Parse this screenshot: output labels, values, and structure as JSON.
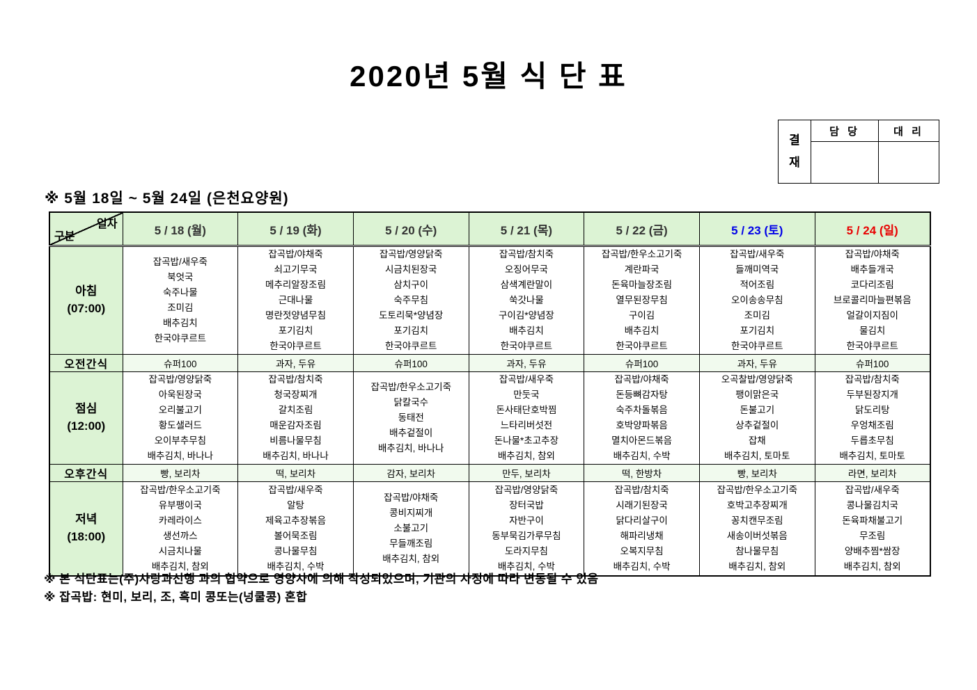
{
  "title": "2020년  5월  식  단  표",
  "approval": {
    "stamp_label": "결재",
    "col1": "담 당",
    "col2": "대 리"
  },
  "subtitle": "※  5월  18일  ~  5월  24일  (은천요양원)",
  "table": {
    "corner_top": "일자",
    "corner_bottom": "구분",
    "days": [
      {
        "label": "5 / 18 (월)",
        "color": "#333333"
      },
      {
        "label": "5 / 19 (화)",
        "color": "#333333"
      },
      {
        "label": "5 / 20 (수)",
        "color": "#333333"
      },
      {
        "label": "5 / 21 (목)",
        "color": "#333333"
      },
      {
        "label": "5 / 22 (금)",
        "color": "#333333"
      },
      {
        "label": "5 / 23 (토)",
        "color": "#0000e8"
      },
      {
        "label": "5 / 24 (일)",
        "color": "#e80000"
      }
    ],
    "rows": [
      {
        "kind": "meal",
        "meal": "아침",
        "time": "(07:00)",
        "menus": [
          [
            "잡곡밥/새우죽",
            "북엇국",
            "숙주나물",
            "조미김",
            "배추김치",
            "한국야쿠르트"
          ],
          [
            "잡곡밥/야채죽",
            "쇠고기무국",
            "메추리알장조림",
            "근대나물",
            "명란젓양념무침",
            "포기김치",
            "한국야쿠르트"
          ],
          [
            "잡곡밥/영양닭죽",
            "시금치된장국",
            "삼치구이",
            "숙주무침",
            "도토리묵*양념장",
            "포기김치",
            "한국야쿠르트"
          ],
          [
            "잡곡밥/참치죽",
            "오징어무국",
            "삼색계란말이",
            "쑥갓나물",
            "구이김*양념장",
            "배추김치",
            "한국야쿠르트"
          ],
          [
            "잡곡밥/한우소고기죽",
            "계란파국",
            "돈육마늘장조림",
            "열무된장무침",
            "구이김",
            "배추김치",
            "한국야쿠르트"
          ],
          [
            "잡곡밥/새우죽",
            "들깨미역국",
            "적어조림",
            "오이송송무침",
            "조미김",
            "포기김치",
            "한국야쿠르트"
          ],
          [
            "잡곡밥/야채죽",
            "배추들개국",
            "코다리조림",
            "브로콜리마늘편볶음",
            "얼갈이지짐이",
            "물김치",
            "한국야쿠르트"
          ]
        ]
      },
      {
        "kind": "snack",
        "meal": "오전간식",
        "items": [
          "슈퍼100",
          "과자, 두유",
          "슈퍼100",
          "과자, 두유",
          "슈퍼100",
          "과자, 두유",
          "슈퍼100"
        ]
      },
      {
        "kind": "meal",
        "meal": "점심",
        "time": "(12:00)",
        "menus": [
          [
            "잡곡밥/영양닭죽",
            "아욱된장국",
            "오리불고기",
            "황도샐러드",
            "오이부추무침",
            "배추김치, 바나나"
          ],
          [
            "잡곡밥/참치죽",
            "청국장찌개",
            "갈치조림",
            "매운감자조림",
            "비름나물무침",
            "배추김치, 바나나"
          ],
          [
            "잡곡밥/한우소고기죽",
            "닭칼국수",
            "동태전",
            "배추겉절이",
            "배추김치, 바나나"
          ],
          [
            "잡곡밥/새우죽",
            "만둣국",
            "돈사태단호박찜",
            "느타리버섯전",
            "돈나물*초고추장",
            "배추김치, 참외"
          ],
          [
            "잡곡밥/야채죽",
            "돈등뼈감자탕",
            "숙주차돌볶음",
            "호박양파볶음",
            "멸치아몬드볶음",
            "배추김치, 수박"
          ],
          [
            "오곡찰밥/영양닭죽",
            "팽이맑은국",
            "돈불고기",
            "상추겉절이",
            "잡채",
            "배추김치, 토마토"
          ],
          [
            "잡곡밥/참치죽",
            "두부된장지개",
            "닭도리탕",
            "우엉채조림",
            "두릅초무침",
            "배추김치, 토마토"
          ]
        ]
      },
      {
        "kind": "snack",
        "meal": "오후간식",
        "items": [
          "빵, 보리차",
          "떡, 보리차",
          "감자, 보리차",
          "만두, 보리차",
          "떡, 한방차",
          "빵, 보리차",
          "라면, 보리차"
        ]
      },
      {
        "kind": "meal",
        "meal": "저녁",
        "time": "(18:00)",
        "menus": [
          [
            "잡곡밥/한우소고기죽",
            "유부팽이국",
            "카레라이스",
            "생선까스",
            "시금치나물",
            "배추김치, 참외"
          ],
          [
            "잡곡밥/새우죽",
            "알탕",
            "제육고추장볶음",
            "볼어묵조림",
            "콩나물무침",
            "배추김치, 수박"
          ],
          [
            "잡곡밥/야채죽",
            "콩비지찌개",
            "소불고기",
            "무들깨조림",
            "배추김치, 참외"
          ],
          [
            "잡곡밥/영양닭죽",
            "장터국밥",
            "자반구이",
            "동부묵김가루무침",
            "도라지무침",
            "배추김치, 수박"
          ],
          [
            "잡곡밥/참치죽",
            "시래기된장국",
            "닭다리살구이",
            "해파리냉채",
            "오복지무침",
            "배추김치, 수박"
          ],
          [
            "잡곡밥/한우소고기죽",
            "호박고추장찌개",
            "꽁치캔무조림",
            "새송이버섯볶음",
            "참나물무침",
            "배추김치, 참외"
          ],
          [
            "잡곡밥/새우죽",
            "콩나물김치국",
            "돈육파채불고기",
            "무조림",
            "양배추찜*쌈장",
            "배추김치, 참외"
          ]
        ]
      }
    ]
  },
  "footnotes": [
    "※  본  식단표는(주)사랑과선행  과의  협약으로  영양사에  의해  작성되었으며,  기관의  사정에  따라  변동될  수  있음",
    "※  잡곡밥:  현미,  보리,  조,  흑미  콩또는(넝쿨콩)  혼합"
  ]
}
